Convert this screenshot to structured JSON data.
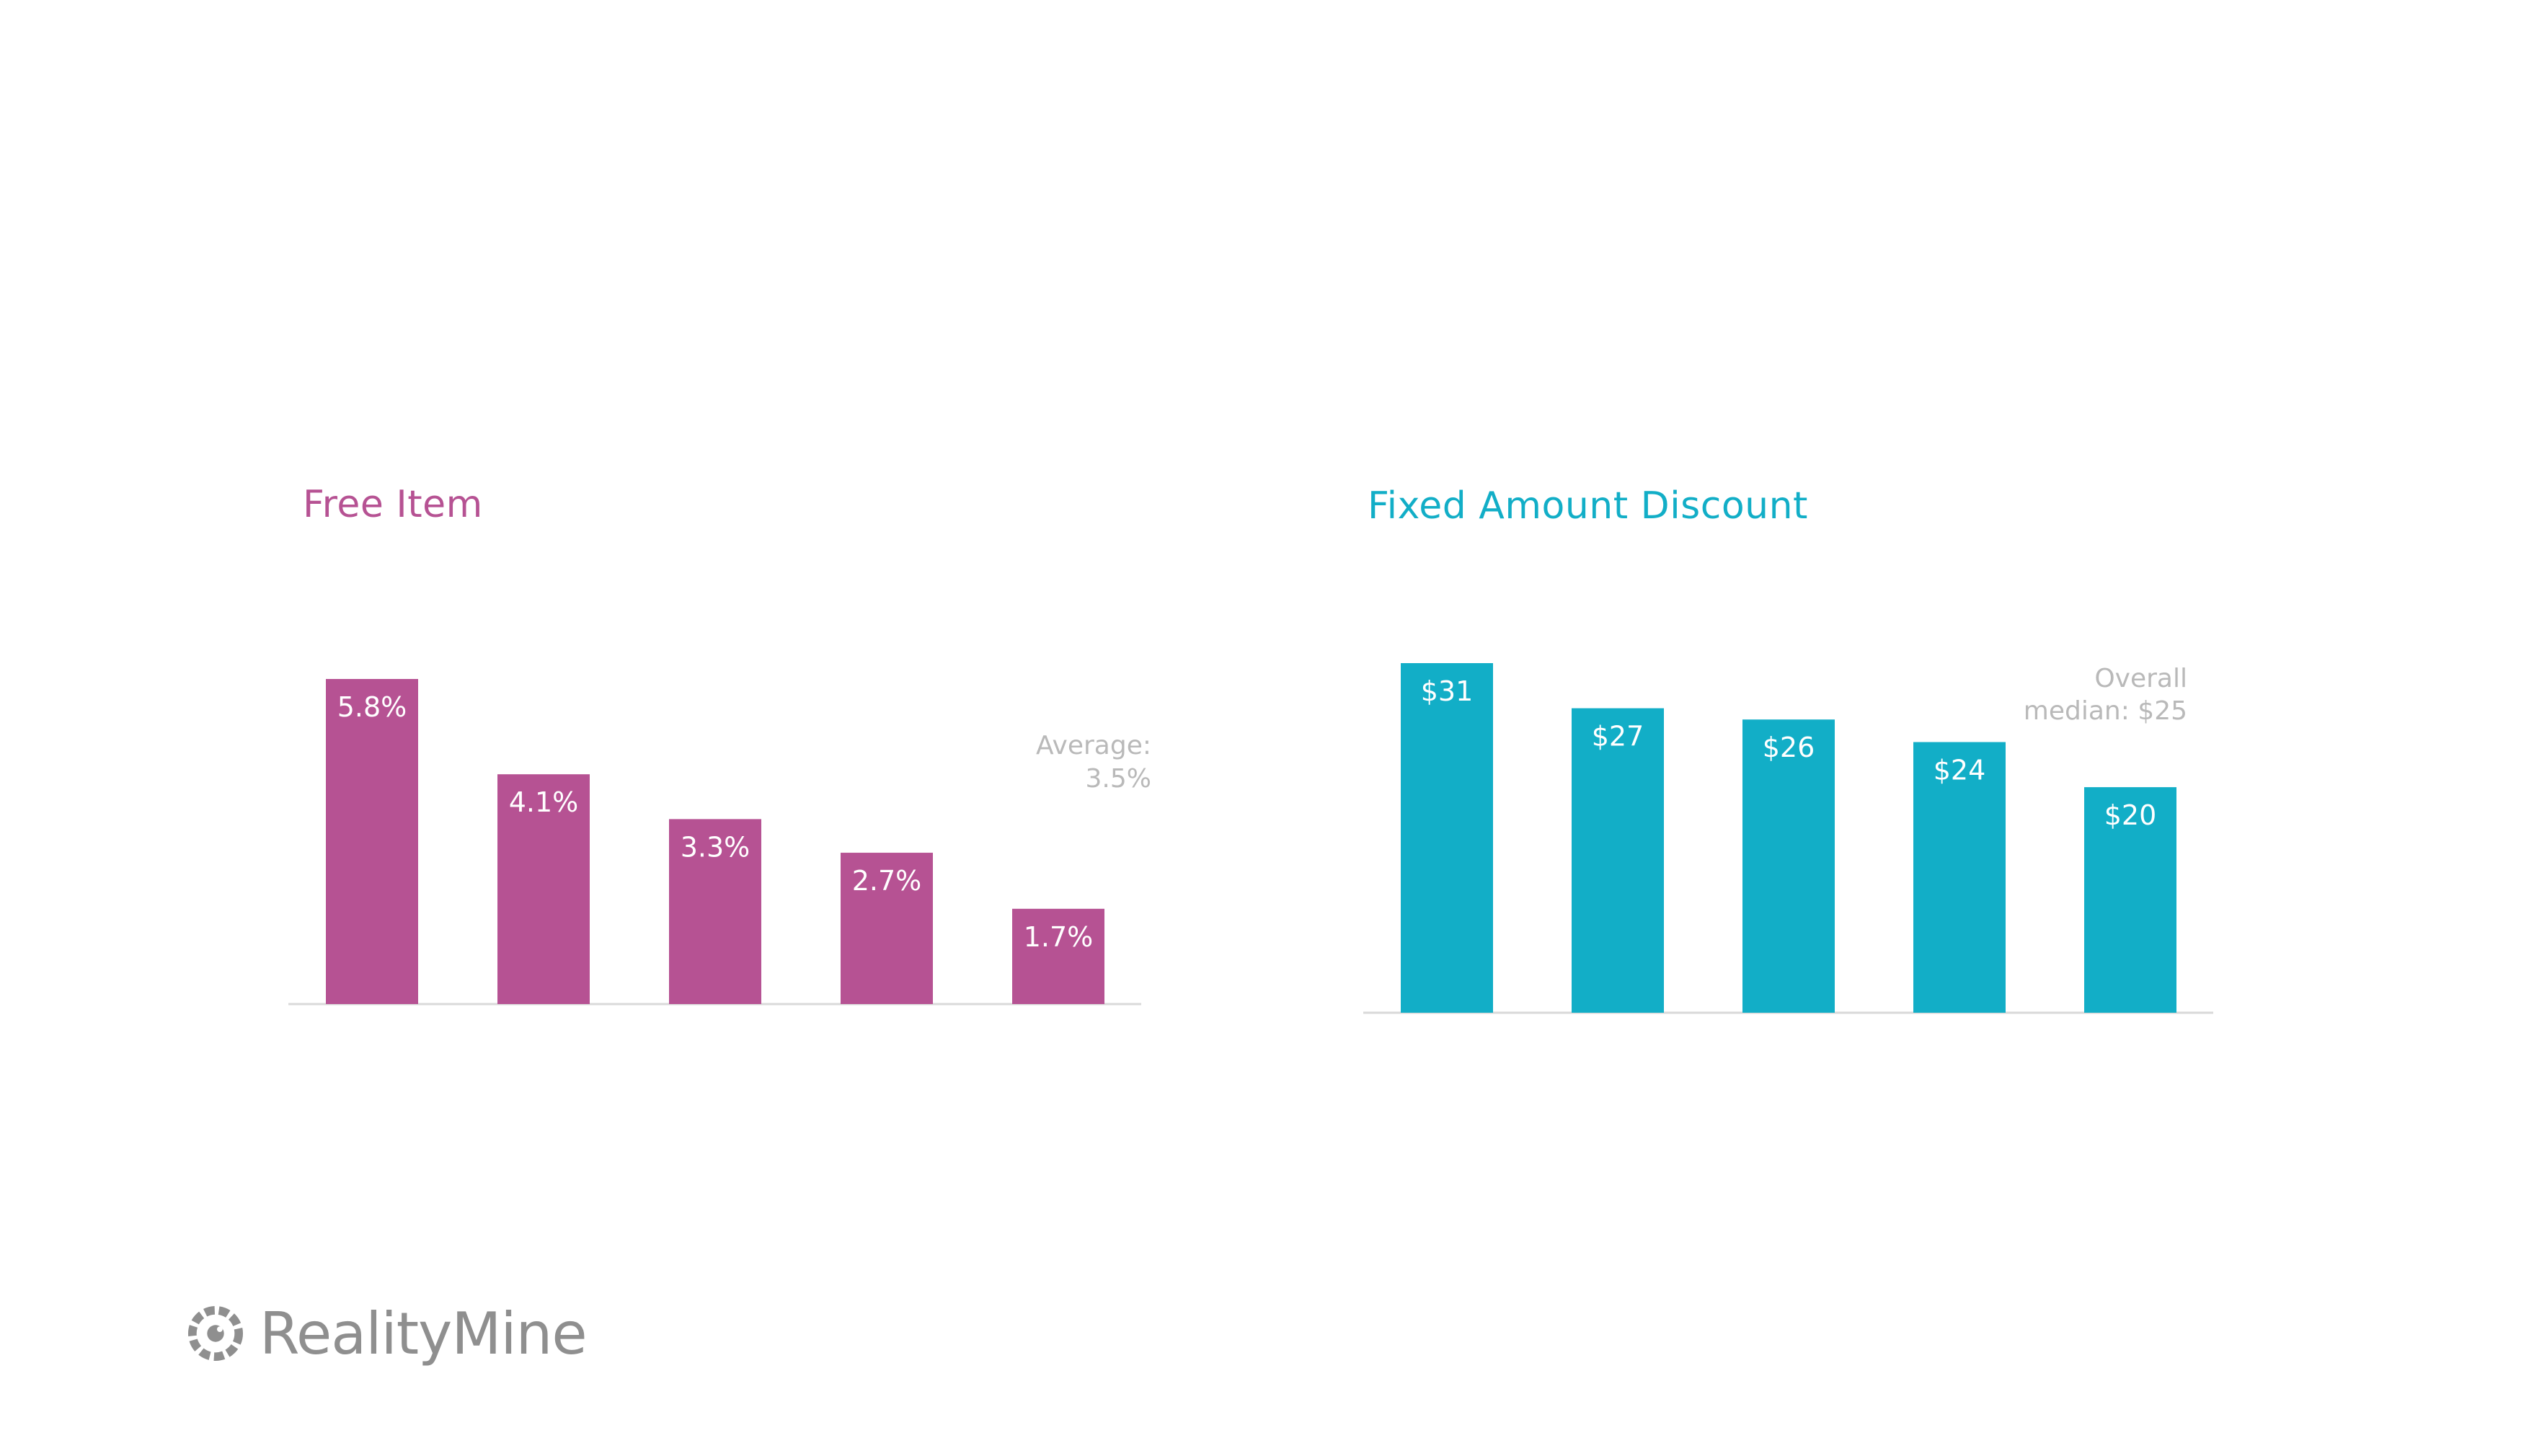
{
  "colors": {
    "left_accent": "#b65293",
    "right_accent": "#12aec7",
    "axis": "#d9d9d9",
    "annotation": "#b9b9b9",
    "logo": "#8f8f8f"
  },
  "logo": {
    "text": "RealityMine",
    "icon": "realitymine-eye-icon"
  },
  "chart_data": [
    {
      "type": "bar",
      "title": "Free Item",
      "categories": [
        "",
        "",
        "",
        "",
        ""
      ],
      "values": [
        5.8,
        4.1,
        3.3,
        2.7,
        1.7
      ],
      "value_labels": [
        "5.8%",
        "4.1%",
        "3.3%",
        "2.7%",
        "1.7%"
      ],
      "ylim": [
        0,
        5.8
      ],
      "xlabel": "",
      "ylabel": "",
      "grid": false,
      "legend": "none",
      "annotation": {
        "line1": "Average:",
        "line2": "3.5%"
      }
    },
    {
      "type": "bar",
      "title": "Fixed Amount Discount",
      "categories": [
        "",
        "",
        "",
        "",
        ""
      ],
      "values": [
        31,
        27,
        26,
        24,
        20
      ],
      "value_labels": [
        "$31",
        "$27",
        "$26",
        "$24",
        "$20"
      ],
      "ylim": [
        0,
        31
      ],
      "xlabel": "",
      "ylabel": "",
      "grid": false,
      "legend": "none",
      "annotation": {
        "line1": "Overall",
        "line2": "median: $25"
      }
    }
  ]
}
